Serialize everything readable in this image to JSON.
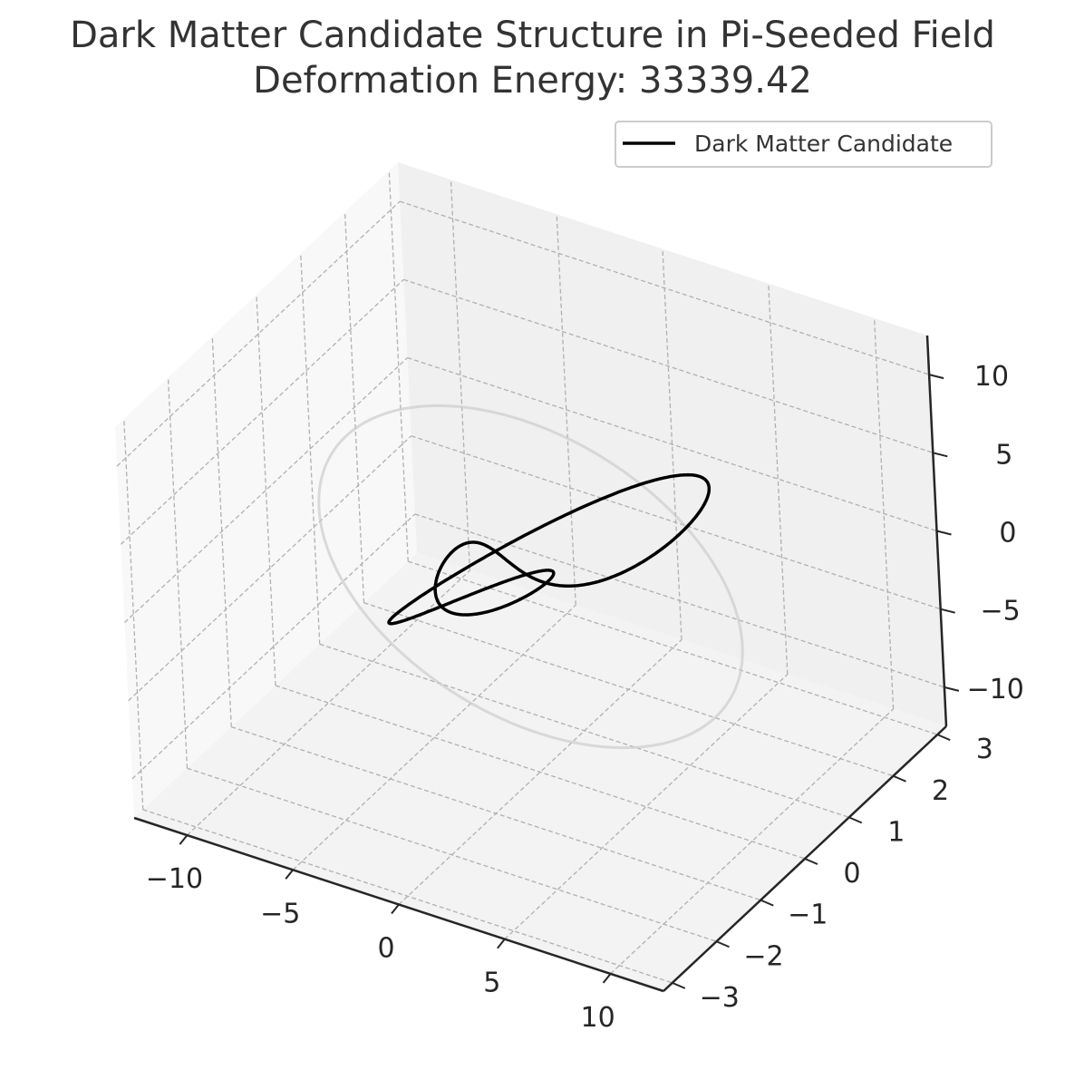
{
  "chart_data": {
    "type": "line3d",
    "title": "Dark Matter Candidate Structure in Pi-Seeded Field",
    "subtitle": "Deformation Energy: 33339.42",
    "xlabel": "",
    "ylabel": "",
    "zlabel": "",
    "xlim": [
      -12.5,
      12.5
    ],
    "ylim": [
      -3.2,
      3.2
    ],
    "zlim": [
      -12.5,
      12.5
    ],
    "x_ticks": [
      -10,
      -5,
      0,
      5,
      10
    ],
    "y_ticks": [
      -3,
      -2,
      -1,
      0,
      1,
      2,
      3
    ],
    "z_ticks": [
      -10,
      -5,
      0,
      5,
      10
    ],
    "x_tick_labels": [
      "−10",
      "−5",
      "0",
      "5",
      "10"
    ],
    "y_tick_labels": [
      "−3",
      "−2",
      "−1",
      "0",
      "1",
      "2",
      "3"
    ],
    "z_tick_labels": [
      "−10",
      "−5",
      "0",
      "5",
      "10"
    ],
    "grid": true,
    "legend_position": "top-right",
    "series": [
      {
        "name": "Dark Matter Candidate",
        "color": "#000000",
        "style": "trefoil-knot",
        "params": {
          "x_amplitude": 4.4,
          "y_amplitude": 0.9,
          "z_amplitude": 4.6,
          "wind_ratio": "2:3"
        }
      },
      {
        "name": "",
        "color": "#cccccc",
        "style": "ring",
        "params": {
          "radius": 10,
          "y_offset": 0
        }
      }
    ]
  },
  "colors": {
    "pane_left": "#f8f8f8",
    "pane_floor": "#f3f3f3",
    "pane_back": "#f0f0f0",
    "grid": "#b0b0b0",
    "axis": "#262626"
  }
}
